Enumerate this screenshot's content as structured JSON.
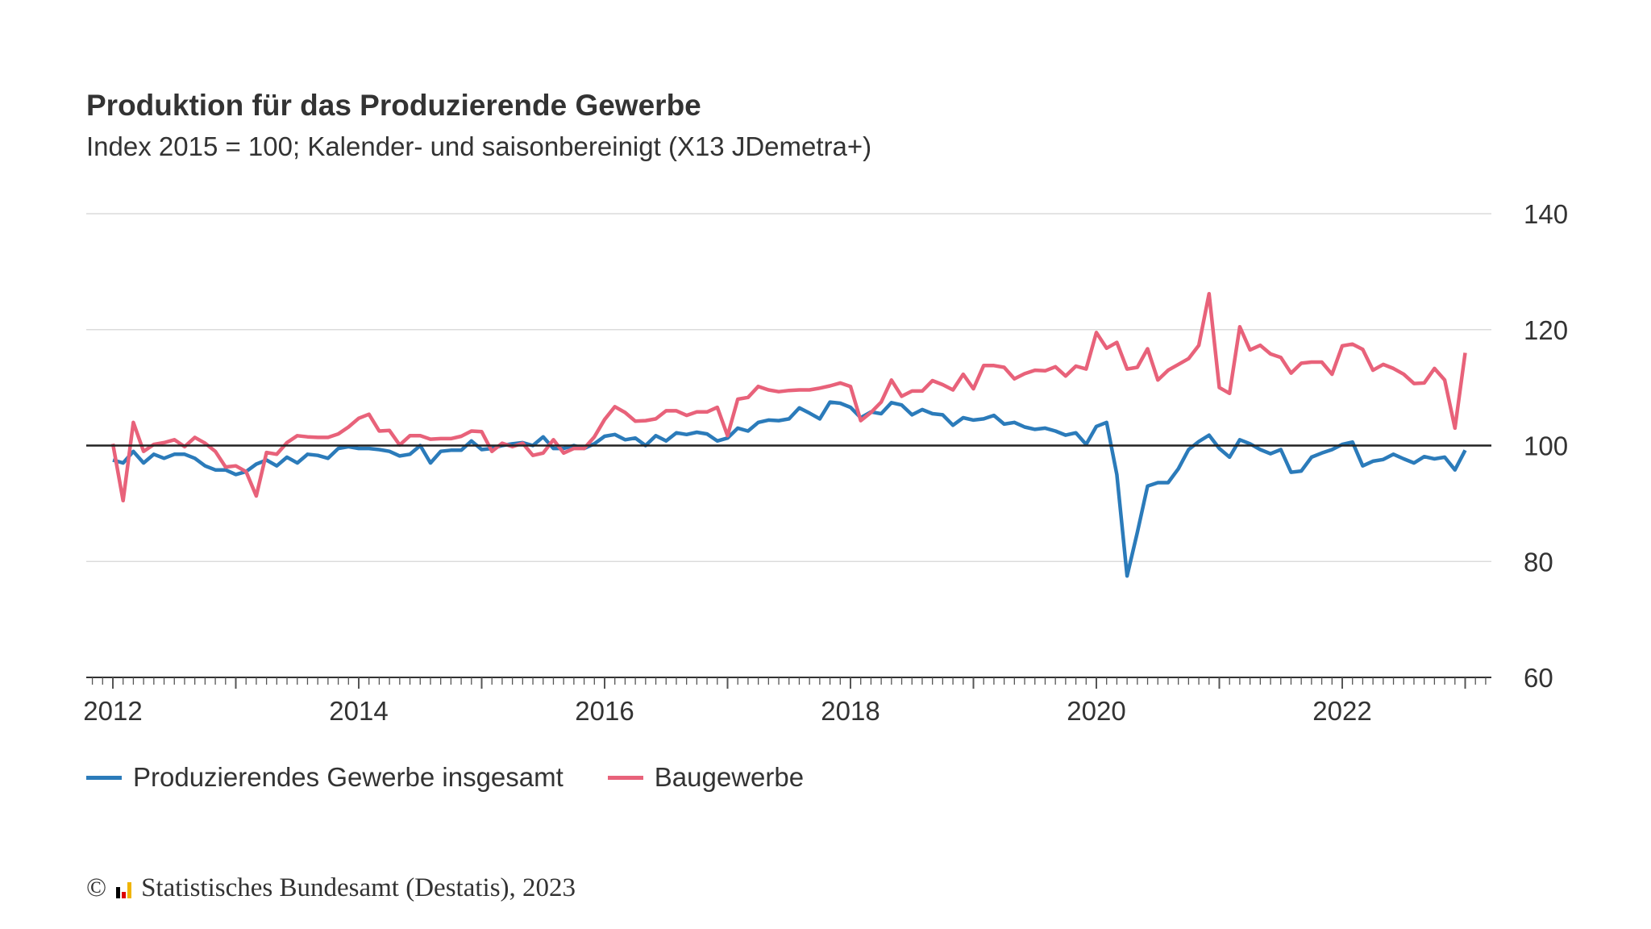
{
  "chart_data": {
    "type": "line",
    "title": "Produktion für das Produzierende Gewerbe",
    "subtitle": "Index 2015 = 100; Kalender- und saisonbereinigt (X13 JDemetra+)",
    "x_start": "2012-01",
    "x_end": "2023-01",
    "x_frequency": "monthly",
    "x_ticks": [
      "2012",
      "2014",
      "2016",
      "2018",
      "2020",
      "2022"
    ],
    "y_ticks": [
      "140",
      "120",
      "100",
      "80",
      "60"
    ],
    "ylim": [
      60,
      140
    ],
    "reference_line": 100,
    "grid": true,
    "legend_position": "bottom",
    "series": [
      {
        "name": "Produzierendes Gewerbe insgesamt",
        "color": "#2b7bba",
        "values": [
          97.5,
          97,
          99,
          97,
          98.5,
          97.8,
          98.5,
          98.5,
          97.8,
          96.5,
          95.8,
          95.8,
          95,
          95.5,
          96.8,
          97.5,
          96.5,
          98,
          97,
          98.5,
          98.3,
          97.8,
          99.5,
          99.8,
          99.5,
          99.5,
          99.3,
          99,
          98.2,
          98.5,
          100,
          97,
          99,
          99.2,
          99.2,
          100.8,
          99.3,
          99.5,
          100,
          100.3,
          100.5,
          100,
          101.5,
          99.5,
          99.5,
          100,
          99.5,
          100.3,
          101.6,
          101.9,
          101,
          101.3,
          100,
          101.7,
          100.8,
          102.2,
          101.9,
          102.3,
          102,
          100.8,
          101.3,
          103,
          102.5,
          104,
          104.4,
          104.3,
          104.6,
          106.5,
          105.6,
          104.6,
          107.5,
          107.3,
          106.6,
          104.8,
          105.8,
          105.5,
          107.4,
          107,
          105.3,
          106.2,
          105.5,
          105.3,
          103.5,
          104.8,
          104.4,
          104.6,
          105.2,
          103.7,
          104,
          103.2,
          102.8,
          103,
          102.5,
          101.8,
          102.2,
          100.2,
          103.3,
          104,
          95,
          77.5,
          85,
          93,
          93.6,
          93.6,
          96,
          99.3,
          100.7,
          101.8,
          99.5,
          98,
          101,
          100.3,
          99.3,
          98.6,
          99.3,
          95.4,
          95.6,
          98,
          98.7,
          99.3,
          100.2,
          100.6,
          96.5,
          97.3,
          97.6,
          98.5,
          97.7,
          97,
          98.1,
          97.7,
          98,
          95.8,
          99.2
        ]
      },
      {
        "name": "Baugewerbe",
        "color": "#e8627a",
        "values": [
          100.3,
          90.5,
          104,
          99,
          100.2,
          100.5,
          101,
          99.8,
          101.4,
          100.4,
          99,
          96.3,
          96.5,
          95.5,
          91.3,
          98.8,
          98.5,
          100.5,
          101.7,
          101.5,
          101.4,
          101.4,
          102,
          103.2,
          104.7,
          105.4,
          102.5,
          102.6,
          100.1,
          101.7,
          101.7,
          101.1,
          101.2,
          101.2,
          101.6,
          102.5,
          102.4,
          99,
          100.4,
          99.8,
          100.4,
          98.3,
          98.7,
          101,
          98.7,
          99.5,
          99.5,
          101.5,
          104.5,
          106.7,
          105.7,
          104.2,
          104.3,
          104.6,
          106,
          106,
          105.2,
          105.8,
          105.8,
          106.6,
          101.7,
          108,
          108.3,
          110.2,
          109.6,
          109.3,
          109.5,
          109.6,
          109.6,
          109.9,
          110.3,
          110.8,
          110.2,
          104.3,
          105.7,
          107.5,
          111.3,
          108.5,
          109.4,
          109.4,
          111.2,
          110.5,
          109.6,
          112.3,
          109.8,
          113.8,
          113.8,
          113.5,
          111.5,
          112.4,
          113,
          112.9,
          113.6,
          112,
          113.7,
          113.2,
          119.5,
          116.8,
          117.8,
          113.2,
          113.5,
          116.7,
          111.3,
          113,
          114,
          115,
          117.3,
          126.2,
          110,
          109,
          120.5,
          116.5,
          117.3,
          115.8,
          115.2,
          112.5,
          114.2,
          114.4,
          114.4,
          112.3,
          117.2,
          117.5,
          116.6,
          113,
          114,
          113.3,
          112.3,
          110.7,
          110.8,
          113.3,
          111.3,
          103,
          116
        ]
      }
    ]
  },
  "footer": {
    "copyright_symbol": "©",
    "text": "Statistisches Bundesamt (Destatis), 2023"
  }
}
